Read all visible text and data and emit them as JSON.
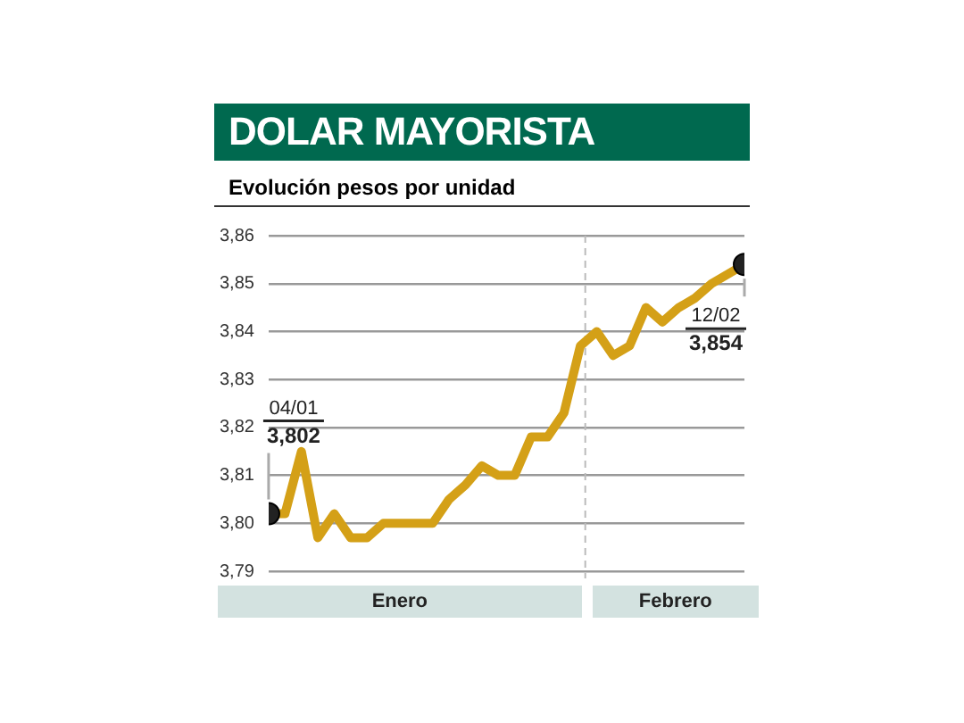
{
  "chart_data": {
    "type": "line",
    "title": "DOLAR MAYORISTA",
    "subtitle": "Evolución pesos por unidad",
    "categories": [
      null,
      null,
      null,
      null,
      null,
      null,
      null,
      null,
      null,
      null,
      null,
      null,
      null,
      null,
      null,
      null,
      null,
      null,
      null,
      null,
      null,
      null,
      null,
      null,
      null,
      null,
      null,
      null,
      null,
      null
    ],
    "series": [
      {
        "color": "#d4a017",
        "values": [
          3.802,
          3.802,
          3.815,
          3.797,
          3.802,
          3.797,
          3.797,
          3.8,
          3.8,
          3.8,
          3.8,
          3.805,
          3.808,
          3.812,
          3.81,
          3.81,
          3.818,
          3.818,
          3.823,
          3.837,
          3.84,
          3.835,
          3.837,
          3.845,
          3.842,
          3.845,
          3.847,
          3.85,
          3.852,
          3.854
        ]
      }
    ],
    "ylim": [
      3.79,
      3.86
    ],
    "yticks": [
      {
        "value": 3.79,
        "label": "3,79"
      },
      {
        "value": 3.8,
        "label": "3,80"
      },
      {
        "value": 3.81,
        "label": "3,81"
      },
      {
        "value": 3.82,
        "label": "3,82"
      },
      {
        "value": 3.83,
        "label": "3,83"
      },
      {
        "value": 3.84,
        "label": "3,84"
      },
      {
        "value": 3.85,
        "label": "3,85"
      },
      {
        "value": 3.86,
        "label": "3,86"
      }
    ],
    "grid": "y",
    "legend": false,
    "tick_labels": "y",
    "annotations": [
      "04/01",
      "3,802",
      "12/02",
      "3,854",
      "Enero",
      "Febrero"
    ]
  }
}
